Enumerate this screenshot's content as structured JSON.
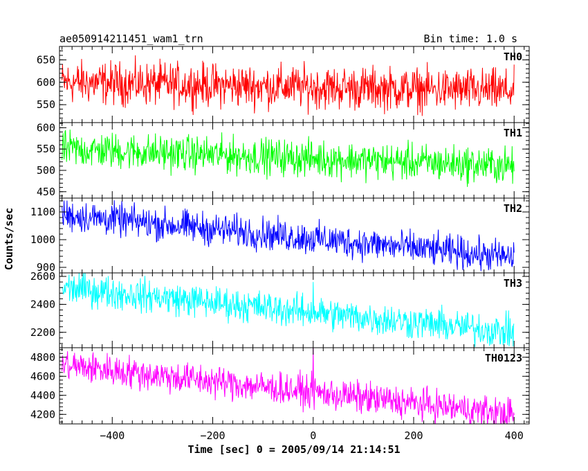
{
  "header": {
    "left": "ae050914211451_wam1_trn",
    "right": "Bin time: 1.0 s"
  },
  "chart_data": {
    "type": "line",
    "title": "ae050914211451_wam1_trn",
    "bin_time": "Bin time: 1.0 s",
    "xlabel": "Time [sec] 0 = 2005/09/14 21:14:51",
    "ylabel": "Counts/sec",
    "xlim": [
      -505,
      430
    ],
    "x_ticks": [
      -400,
      -200,
      0,
      200,
      400
    ],
    "x_tick_labels": [
      "−400",
      "−200",
      "0",
      "200",
      "400"
    ],
    "x_range": [
      -500,
      400
    ],
    "grid": false,
    "panels": [
      {
        "name": "TH0",
        "color": "#ff0000",
        "ylim": [
          510,
          680
        ],
        "y_ticks": [
          550,
          600,
          650
        ],
        "y_tick_labels": [
          "550",
          "600",
          "650"
        ],
        "level_start": 600,
        "level_end": 580,
        "noise": 45,
        "spikes": []
      },
      {
        "name": "TH1",
        "color": "#00ff00",
        "ylim": [
          435,
          612
        ],
        "y_ticks": [
          450,
          500,
          550,
          600
        ],
        "y_tick_labels": [
          "450",
          "500",
          "550",
          "600"
        ],
        "level_start": 550,
        "level_end": 510,
        "noise": 40,
        "spikes": []
      },
      {
        "name": "TH2",
        "color": "#0000ff",
        "ylim": [
          880,
          1150
        ],
        "y_ticks": [
          900,
          1000,
          1100
        ],
        "y_tick_labels": [
          "900",
          "1000",
          "1100"
        ],
        "level_start": 1090,
        "level_end": 935,
        "noise": 55,
        "spikes": []
      },
      {
        "name": "TH3",
        "color": "#00ffff",
        "ylim": [
          2090,
          2625
        ],
        "y_ticks": [
          2200,
          2400,
          2600
        ],
        "y_tick_labels": [
          "2200",
          "2400",
          "2600"
        ],
        "level_start": 2520,
        "level_end": 2200,
        "noise": 110,
        "spikes": [
          {
            "x": 0,
            "y": 2560
          }
        ]
      },
      {
        "name": "TH0123",
        "color": "#ff00ff",
        "ylim": [
          4100,
          4900
        ],
        "y_ticks": [
          4200,
          4400,
          4600,
          4800
        ],
        "y_tick_labels": [
          "4200",
          "4400",
          "4600",
          "4800"
        ],
        "level_start": 4720,
        "level_end": 4200,
        "noise": 160,
        "spikes": [
          {
            "x": 0,
            "y": 4900
          }
        ]
      }
    ]
  }
}
